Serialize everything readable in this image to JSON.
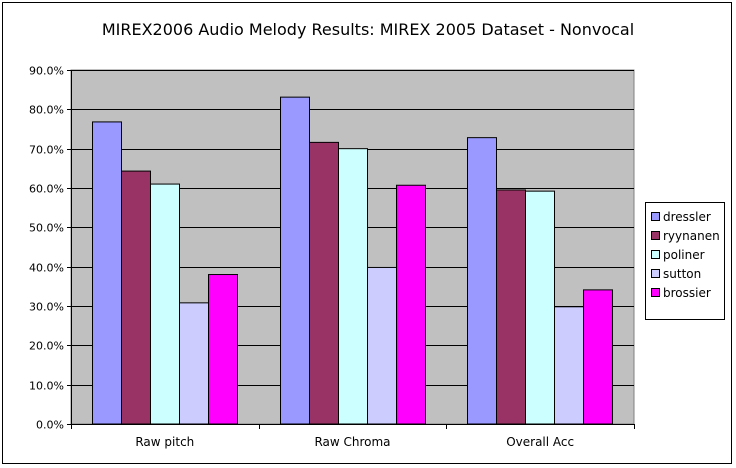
{
  "chart_data": {
    "type": "bar",
    "title": "MIREX2006 Audio Melody Results: MIREX 2005 Dataset - Nonvocal",
    "xlabel": "",
    "ylabel": "",
    "categories": [
      "Raw pitch",
      "Raw Chroma",
      "Overall Acc"
    ],
    "ylim": [
      0,
      0.9
    ],
    "yticks": [
      "0.0%",
      "10.0%",
      "20.0%",
      "30.0%",
      "40.0%",
      "50.0%",
      "60.0%",
      "70.0%",
      "80.0%",
      "90.0%"
    ],
    "grid": true,
    "legend_position": "right",
    "series": [
      {
        "name": "dressler",
        "color": "#9999ff",
        "values": [
          0.768,
          0.831,
          0.728
        ]
      },
      {
        "name": "ryynanen",
        "color": "#993366",
        "values": [
          0.643,
          0.716,
          0.595
        ]
      },
      {
        "name": "poliner",
        "color": "#ccffff",
        "values": [
          0.61,
          0.7,
          0.592
        ]
      },
      {
        "name": "sutton",
        "color": "#ccccff",
        "values": [
          0.308,
          0.398,
          0.298
        ]
      },
      {
        "name": "brossier",
        "color": "#ff00ff",
        "values": [
          0.38,
          0.607,
          0.341
        ]
      }
    ]
  }
}
